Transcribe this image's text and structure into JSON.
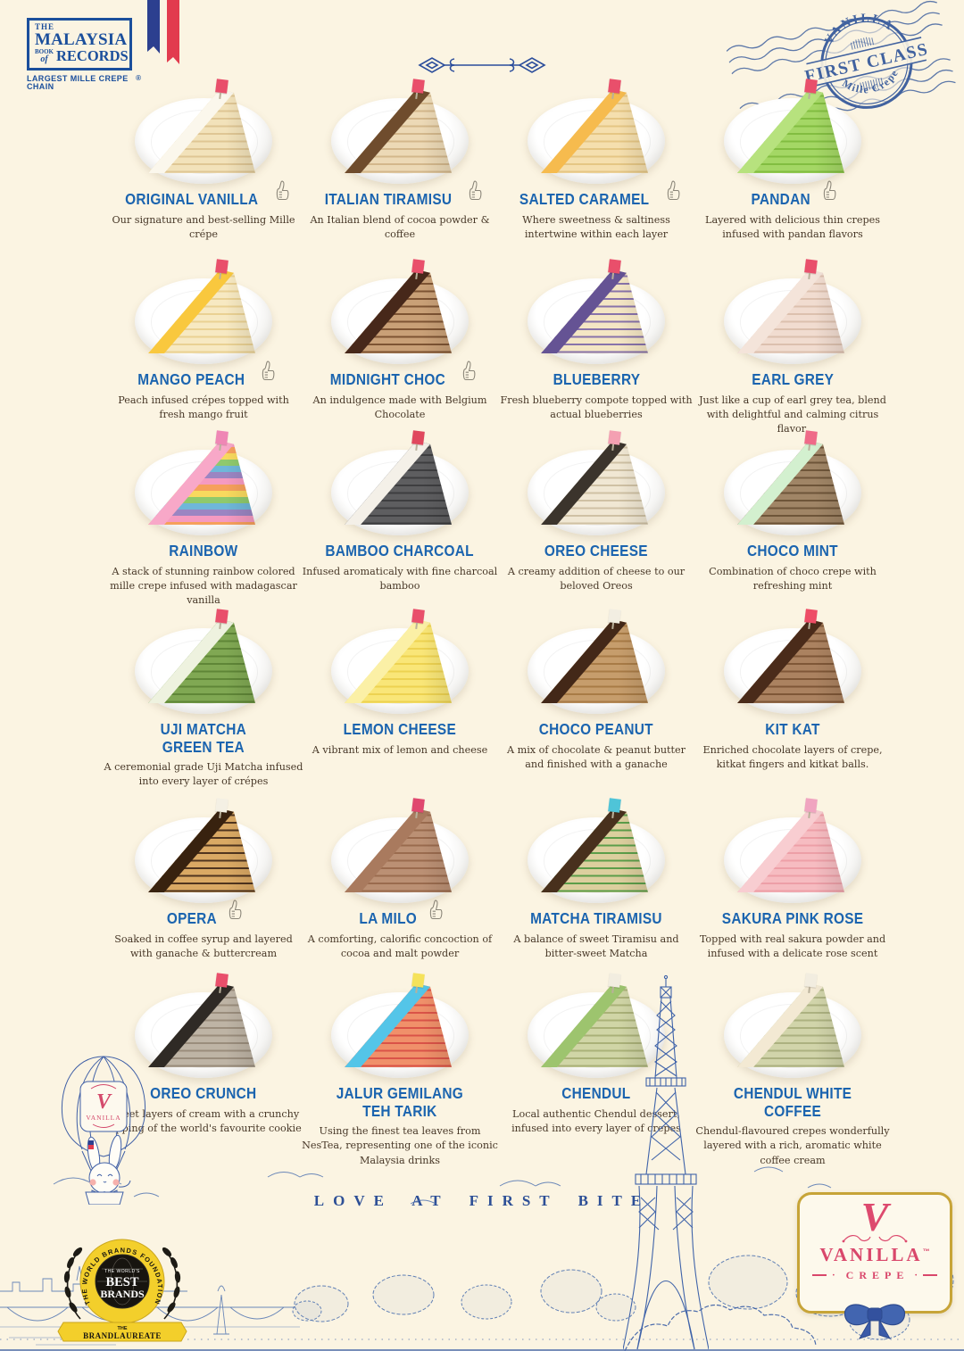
{
  "palette": {
    "background": "#fbf4e2",
    "accent_blue": "#1b64af",
    "ink_blue": "#2d4f96",
    "desc_brown": "#483828",
    "stamp_blue": "#41629f",
    "brand_pink": "#dd4a6e",
    "gold": "#c7a438",
    "award_yellow": "#f3cf2b",
    "sketch_blue": "#466cae",
    "flag_blue": "#2c3f8f",
    "flag_red": "#e23b4e"
  },
  "header": {
    "records_logo": {
      "the": "THE",
      "title": "MALAYSIA",
      "book": "BOOK",
      "of": "of",
      "records": "RECORDS",
      "reg": "®",
      "tagline": "LARGEST MILLE CREPE CHAIN"
    },
    "stamp": {
      "top": "VANILLA",
      "middle": "FIRST CLASS",
      "bottom": "Mille Crepe"
    }
  },
  "menu": {
    "items": [
      {
        "name": "ORIGINAL VANILLA",
        "desc": "Our signature and best-selling Mille crépe",
        "thumbs": true,
        "colors": {
          "body": "#f2e2ba",
          "stripe": "#dfc694",
          "top": "#fbf7ec",
          "flag": "#e94f6b"
        }
      },
      {
        "name": "ITALIAN TIRAMISU",
        "desc": "An Italian blend of cocoa powder & coffee",
        "thumbs": true,
        "colors": {
          "body": "#ecd9b6",
          "stripe": "#d3b78b",
          "top": "#6f4c2d",
          "flag": "#e94f6b"
        }
      },
      {
        "name": "SALTED CARAMEL",
        "desc": "Where sweetness & saltiness intertwine within each layer",
        "thumbs": true,
        "colors": {
          "body": "#f5dfae",
          "stripe": "#e5c684",
          "top": "#f6bb4e",
          "flag": "#e94f6b"
        }
      },
      {
        "name": "PANDAN",
        "desc": "Layered with delicious thin crepes infused with pandan flavors",
        "thumbs": true,
        "colors": {
          "body": "#a4d765",
          "stripe": "#82bd41",
          "top": "#b7e27e",
          "flag": "#e94f6b"
        }
      },
      {
        "name": "MANGO PEACH",
        "desc": "Peach infused crépes topped with fresh mango fruit",
        "thumbs": true,
        "colors": {
          "body": "#f7e9c2",
          "stripe": "#ead193",
          "top": "#f9c83e",
          "flag": "#e94f6b"
        }
      },
      {
        "name": "MIDNIGHT CHOC",
        "desc": "An indulgence made with Belgium Chocolate",
        "thumbs": true,
        "colors": {
          "body": "#c9a077",
          "stripe": "#7e5433",
          "top": "#47281a",
          "flag": "#e94f6b"
        }
      },
      {
        "name": "BLUEBERRY",
        "desc": "Fresh blueberry compote topped with actual blueberries",
        "thumbs": false,
        "colors": {
          "body": "#f4e6c4",
          "stripe": "#8873aa",
          "top": "#655394",
          "flag": "#e94f6b"
        }
      },
      {
        "name": "EARL GREY",
        "desc": "Just like a cup of earl grey tea, blend with delightful and calming citrus flavor.",
        "thumbs": false,
        "colors": {
          "body": "#f1dcd0",
          "stripe": "#dcc0ae",
          "top": "#f4e4da",
          "flag": "#e94f6b"
        }
      },
      {
        "name": "RAINBOW",
        "desc": "A stack of stunning rainbow colored mille crepe infused with madagascar vanilla",
        "thumbs": false,
        "colors": {
          "body": [
            "#f59ac1",
            "#f6a05c",
            "#f8d95e",
            "#8fc96c",
            "#6fb7d9",
            "#9b85c2"
          ],
          "top": "#f8a8c8",
          "flag": "#ef87b5"
        }
      },
      {
        "name": "BAMBOO CHARCOAL",
        "desc": "Infused aromaticaly with fine charcoal bamboo",
        "thumbs": false,
        "colors": {
          "body": "#5e5e60",
          "stripe": "#3e3e40",
          "top": "#f4f0e8",
          "flag": "#e0485e"
        }
      },
      {
        "name": "OREO CHEESE",
        "desc": "A creamy addition of cheese to our beloved Oreos",
        "thumbs": false,
        "colors": {
          "body": "#f0e7d3",
          "stripe": "#cfc1a4",
          "top": "#3b342c",
          "flag": "#f4a0b2"
        }
      },
      {
        "name": "CHOCO MINT",
        "desc": "Combination of choco crepe with refreshing mint",
        "thumbs": false,
        "colors": {
          "body": "#a08566",
          "stripe": "#6e5539",
          "top": "#d3f0cf",
          "flag": "#ef6a88"
        }
      },
      {
        "name": "UJI MATCHA",
        "name2": "GREEN TEA",
        "desc": "A ceremonial grade Uji Matcha infused into every layer of crépes",
        "thumbs": false,
        "colors": {
          "body": "#80a853",
          "stripe": "#5f8637",
          "top": "#eef2df",
          "flag": "#e94f6b"
        }
      },
      {
        "name": "LEMON CHEESE",
        "desc": "A vibrant mix of lemon and cheese",
        "thumbs": false,
        "colors": {
          "body": "#f9e678",
          "stripe": "#edd251",
          "top": "#fbf0a6",
          "flag": "#e94f6b"
        }
      },
      {
        "name": "CHOCO PEANUT",
        "desc": "A mix of chocolate & peanut butter and finished with a ganache",
        "thumbs": false,
        "colors": {
          "body": "#c69d6c",
          "stripe": "#a87b46",
          "top": "#432818",
          "flag": "#f2eee2"
        }
      },
      {
        "name": "KIT KAT",
        "desc": "Enriched chocolate layers of crepe, kitkat fingers and kitkat balls.",
        "thumbs": false,
        "colors": {
          "body": "#ab8260",
          "stripe": "#7f5737",
          "top": "#4a2b1a",
          "flag": "#ee4d66"
        }
      },
      {
        "name": "OPERA",
        "desc": "Soaked in coffee syrup and layered with ganache & buttercream",
        "thumbs": true,
        "colors": {
          "body": "#daa964",
          "stripe": "#50351f",
          "top": "#38220f",
          "flag": "#f4f0e4"
        }
      },
      {
        "name": "LA MILO",
        "desc": "A comforting, calorific concoction of cocoa and malt powder",
        "thumbs": true,
        "colors": {
          "body": "#bb9074",
          "stripe": "#9a6b4e",
          "top": "#a97a5e",
          "flag": "#e0486f"
        }
      },
      {
        "name": "MATCHA TIRAMISU",
        "desc": "A balance of sweet Tiramisu and bitter-sweet Matcha",
        "thumbs": false,
        "colors": {
          "body": "#dccf9e",
          "stripe": "#5c9e4a",
          "top": "#48301d",
          "flag": "#4fc4d8"
        }
      },
      {
        "name": "SAKURA PINK ROSE",
        "desc": "Topped with real sakura powder and infused with a delicate rose scent",
        "thumbs": false,
        "colors": {
          "body": "#f6bcc1",
          "stripe": "#ed9fa7",
          "top": "#f8cdd1",
          "flag": "#f0a4c0"
        }
      },
      {
        "name": "OREO CRUNCH",
        "desc": "Sweet layers of cream with a crunchy topping of the world's favourite cookie",
        "thumbs": false,
        "colors": {
          "body": "#beb4a5",
          "stripe": "#9a8d7c",
          "top": "#2f2a25",
          "flag": "#e94f6b"
        }
      },
      {
        "name": "JALUR GEMILANG",
        "name2": "TEH TARIK",
        "desc": "Using the finest tea leaves from NesTea, representing one of the iconic Malaysia drinks",
        "thumbs": false,
        "colors": {
          "body": "#f0906a",
          "stripe": "#da5348",
          "top": "#54c5e8",
          "flag": "#f5e25a"
        }
      },
      {
        "name": "CHENDUL",
        "desc": "Local authentic Chendul dessert, infused into every layer of crepes",
        "thumbs": false,
        "colors": {
          "body": "#d0d5a6",
          "stripe": "#aab178",
          "top": "#9dc46e",
          "flag": "#f2ede0"
        }
      },
      {
        "name": "CHENDUL WHITE COFFEE",
        "desc": "Chendul-flavoured crepes wonderfully layered with a rich, aromatic white coffee cream",
        "thumbs": false,
        "colors": {
          "body": "#d1d4aa",
          "stripe": "#acb180",
          "top": "#f3e9d3",
          "flag": "#f2ede0"
        }
      }
    ]
  },
  "footer": {
    "tagline": "LOVE AT FIRST BITE",
    "balloon": {
      "monogram": "V",
      "label": "VANILLA"
    },
    "award": {
      "ring": "THE WORLD BRANDS FOUNDATION",
      "center_small": "THE WORLD'S",
      "center_big1": "BEST",
      "center_big2": "BRANDS",
      "ribbon_the": "THE",
      "ribbon_name": "BRANDLAUREATE"
    },
    "brand_card": {
      "monogram": "V",
      "name": "VANILLA",
      "tm": "™",
      "sub": "CREPE"
    }
  }
}
